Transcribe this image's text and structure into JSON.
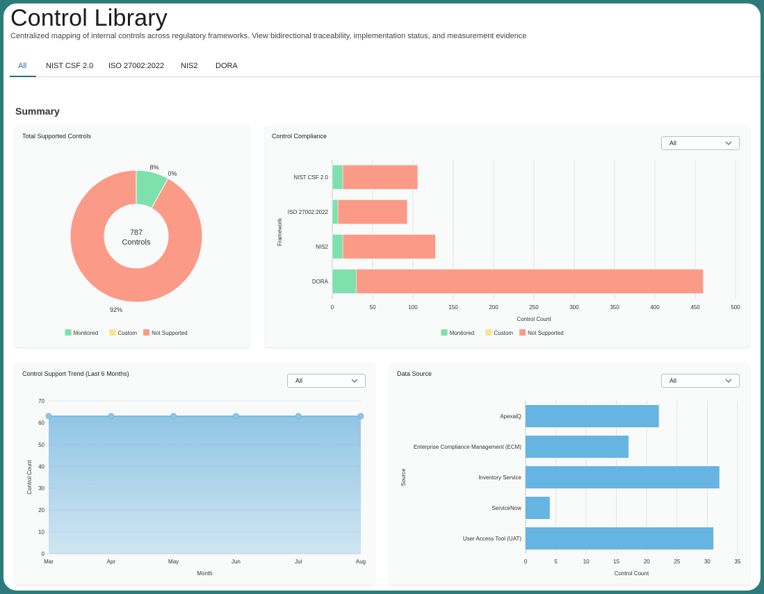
{
  "header": {
    "title": "Control Library",
    "subtitle": "Centralized mapping of internal controls across regulatory frameworks. View bidirectional traceability, implementation status, and measurement evidence"
  },
  "tabs": [
    {
      "label": "All",
      "active": true
    },
    {
      "label": "NIST CSF 2.0",
      "active": false
    },
    {
      "label": "ISO 27002:2022",
      "active": false
    },
    {
      "label": "NIS2",
      "active": false
    },
    {
      "label": "DORA",
      "active": false
    }
  ],
  "summary": {
    "title": "Summary",
    "total_card": {
      "title": "Total Supported Controls"
    },
    "compliance_card": {
      "title": "Control Compliance",
      "filter": "All"
    },
    "trend_card": {
      "title": "Control Support Trend (Last 6 Months)",
      "filter": "All"
    },
    "source_card": {
      "title": "Data Source",
      "filter": "All"
    }
  },
  "colors": {
    "monitored": "#7ee0ad",
    "custom": "#fbe58a",
    "not_supported": "#fb9a86",
    "trend": "#6fb4de",
    "source_bar": "#65b4e2",
    "accent": "#1f6f8b"
  },
  "chart_data": [
    {
      "type": "pie",
      "variant": "donut",
      "center_value": "787",
      "center_label": "Controls",
      "slices": [
        {
          "name": "Monitored",
          "value": 8,
          "label": "8%"
        },
        {
          "name": "Custom",
          "value": 0,
          "label": "0%"
        },
        {
          "name": "Not Supported",
          "value": 92,
          "label": "92%"
        }
      ],
      "legend": [
        "Monitored",
        "Custom",
        "Not Supported"
      ],
      "legend_position": "bottom"
    },
    {
      "type": "bar",
      "orientation": "horizontal",
      "stacked": true,
      "categories": [
        "NIST CSF 2.0",
        "ISO 27002:2022",
        "NIS2",
        "DORA"
      ],
      "series": [
        {
          "name": "Monitored",
          "values": [
            13,
            7,
            13,
            30
          ]
        },
        {
          "name": "Custom",
          "values": [
            0,
            0,
            0,
            0
          ]
        },
        {
          "name": "Not Supported",
          "values": [
            93,
            86,
            115,
            430
          ]
        }
      ],
      "xlabel": "Control Count",
      "ylabel": "Framework",
      "xlim": [
        0,
        500
      ],
      "xticks": [
        0,
        50,
        100,
        150,
        200,
        250,
        300,
        350,
        400,
        450,
        500
      ],
      "grid": true,
      "legend_position": "bottom"
    },
    {
      "type": "area",
      "categories": [
        "Mar",
        "Apr",
        "May",
        "Jun",
        "Jul",
        "Aug"
      ],
      "values": [
        63,
        63,
        63,
        63,
        63,
        63
      ],
      "xlabel": "Month",
      "ylabel": "Control Count",
      "ylim": [
        0,
        70
      ],
      "yticks": [
        0,
        10,
        20,
        30,
        40,
        50,
        60,
        70
      ],
      "grid": true
    },
    {
      "type": "bar",
      "orientation": "horizontal",
      "categories": [
        "ApexalQ",
        "Enterprise Compliance Management (ECM)",
        "Inventory Service",
        "ServiceNow",
        "User Access Tool (UAT)"
      ],
      "values": [
        22,
        17,
        32,
        4,
        31
      ],
      "xlabel": "Control Count",
      "ylabel": "Source",
      "xlim": [
        0,
        35
      ],
      "xticks": [
        0,
        5,
        10,
        15,
        20,
        25,
        30,
        35
      ],
      "grid": true
    }
  ]
}
